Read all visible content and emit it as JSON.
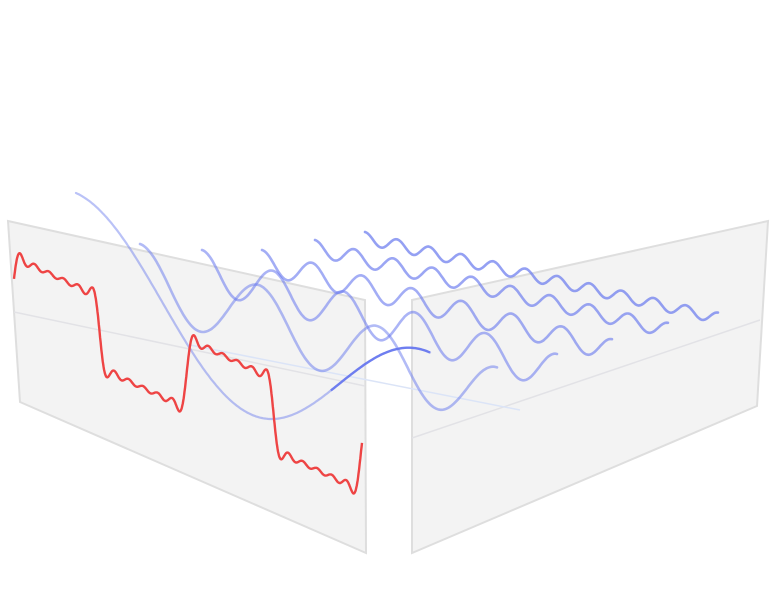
{
  "colors": {
    "background": "#ffffff",
    "panel_fill": "#f2f2f2",
    "panel_edge": "#dedede",
    "panel_axis": "#d0d8ea",
    "square_wave": "#ee4444",
    "harmonic_wave": "#6677ee"
  },
  "diagram": {
    "description": "fourier-decomposition",
    "square_wave_terms": 6,
    "harmonics": [
      {
        "n": 1,
        "label": ""
      },
      {
        "n": 3,
        "label": ""
      },
      {
        "n": 5,
        "label": ""
      },
      {
        "n": 7,
        "label": ""
      },
      {
        "n": 9,
        "label": ""
      },
      {
        "n": 11,
        "label": ""
      }
    ]
  }
}
